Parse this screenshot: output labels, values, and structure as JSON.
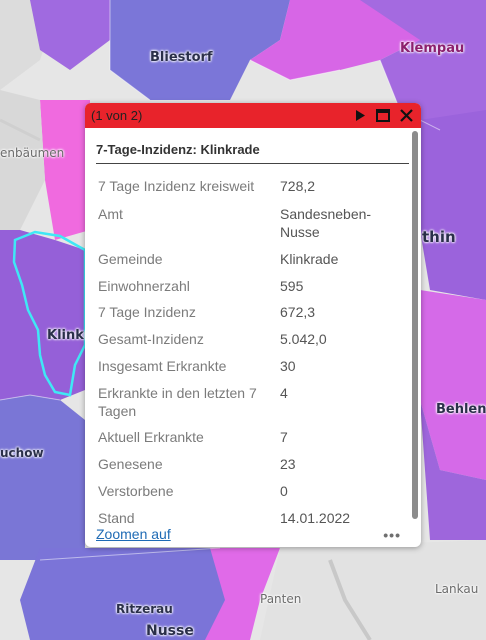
{
  "map": {
    "labels": {
      "bliestorf": "Bliestorf",
      "klempau": "Klempau",
      "enbaumen": "enbäumen",
      "thin": "thin",
      "klinkra": "Klinkra",
      "behlend": "Behlend",
      "uchow": "uchow",
      "lankau": "Lankau",
      "panten": "Panten",
      "ritzerau": "Ritzerau",
      "nusse": "Nusse"
    },
    "colors": {
      "purple": "#9b63dc",
      "blue_purple": "#7b73d6",
      "magenta": "#e15ef0",
      "pink": "#e86ad6",
      "highlight": "#3fe8f5"
    }
  },
  "popup": {
    "counter": "(1 von 2)",
    "title": "7-Tage-Inzidenz: Klinkrade",
    "zoom_label": "Zoomen auf",
    "more_label": "•••",
    "rows": [
      {
        "key": "7 Tage Inzidenz kreisweit",
        "value": "728,2"
      },
      {
        "key": "Amt",
        "value": "Sandesneben-Nusse"
      },
      {
        "key": "Gemeinde",
        "value": "Klinkrade"
      },
      {
        "key": "Einwohnerzahl",
        "value": "595"
      },
      {
        "key": "7 Tage Inzidenz",
        "value": "672,3"
      },
      {
        "key": "Gesamt-Inzidenz",
        "value": "5.042,0"
      },
      {
        "key": "Insgesamt Erkrankte",
        "value": "30"
      },
      {
        "key": "Erkrankte in den letzten 7 Tagen",
        "value": "4"
      },
      {
        "key": "Aktuell Erkrankte",
        "value": "7"
      },
      {
        "key": "Genesene",
        "value": "23"
      },
      {
        "key": "Verstorbene",
        "value": "0"
      },
      {
        "key": "Stand",
        "value": "14.01.2022"
      }
    ]
  }
}
